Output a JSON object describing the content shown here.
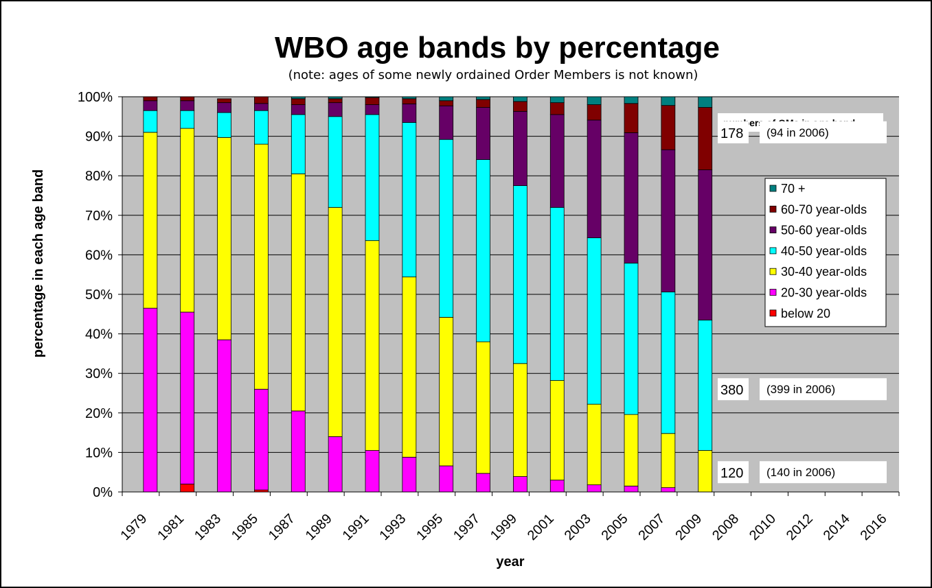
{
  "chart_data": {
    "type": "bar",
    "stacked": true,
    "title": "WBO age bands by percentage",
    "subtitle": "(note: ages of some newly ordained Order Members is not known)",
    "xlabel": "year",
    "ylabel": "percentage in each age band",
    "ylim": [
      0,
      100
    ],
    "ytick_labels": [
      "0%",
      "10%",
      "20%",
      "30%",
      "40%",
      "50%",
      "60%",
      "70%",
      "80%",
      "90%",
      "100%"
    ],
    "categories": [
      "1979",
      "1981",
      "1983",
      "1985",
      "1987",
      "1989",
      "1991",
      "1993",
      "1995",
      "1997",
      "1999",
      "2001",
      "2003",
      "2005",
      "2007",
      "2009",
      "2008",
      "2010",
      "2012",
      "2014",
      "2016"
    ],
    "grid": true,
    "legend_position": "right",
    "series": [
      {
        "name": "below 20",
        "color": "#FF0000",
        "values": [
          0,
          2,
          0,
          0.5,
          0,
          0,
          0,
          0,
          0,
          0,
          0,
          0,
          0,
          0,
          0,
          0,
          null,
          null,
          null,
          null,
          null
        ]
      },
      {
        "name": "20-30 year-olds",
        "color": "#FF00FF",
        "values": [
          46.5,
          43.5,
          38.5,
          25.5,
          20.5,
          14,
          10.5,
          8.8,
          6.6,
          4.7,
          3.9,
          3.0,
          1.8,
          1.5,
          1.1,
          0,
          null,
          null,
          null,
          null,
          null
        ]
      },
      {
        "name": "30-40 year-olds",
        "color": "#FFFF00",
        "values": [
          44.5,
          46.5,
          51.2,
          62,
          60,
          58,
          53.1,
          45.6,
          37.6,
          33.3,
          28.6,
          25.2,
          20.4,
          18.1,
          13.7,
          10.5,
          null,
          null,
          null,
          null,
          null
        ]
      },
      {
        "name": "40-50 year-olds",
        "color": "#00FFFF",
        "values": [
          5.5,
          4.5,
          6.3,
          8.5,
          15,
          23,
          31.9,
          39.1,
          45.0,
          46.1,
          45.0,
          43.8,
          42.1,
          38.3,
          35.8,
          33,
          null,
          null,
          null,
          null,
          null
        ]
      },
      {
        "name": "50-60 year-olds",
        "color": "#660066",
        "values": [
          2.5,
          2.5,
          2.5,
          1.8,
          2.5,
          3.5,
          2.5,
          4.7,
          8.5,
          13.2,
          18.8,
          23.5,
          29.8,
          33.0,
          36.0,
          38,
          null,
          null,
          null,
          null,
          null
        ]
      },
      {
        "name": "60-70 year-olds",
        "color": "#800000",
        "values": [
          1,
          1,
          1,
          1.7,
          1.5,
          1,
          1.8,
          1.3,
          1.3,
          2.0,
          2.5,
          3.0,
          3.9,
          7.4,
          11.2,
          15.8,
          null,
          null,
          null,
          null,
          null
        ]
      },
      {
        "name": "70 +",
        "color": "#008080",
        "values": [
          0,
          0,
          0,
          0,
          0.5,
          0.5,
          0.2,
          0.5,
          1.0,
          0.7,
          1.2,
          1.5,
          2.0,
          1.7,
          2.2,
          2.7,
          null,
          null,
          null,
          null,
          null
        ]
      }
    ],
    "legend_order": [
      "70 +",
      "60-70 year-olds",
      "50-60 year-olds",
      "40-50 year-olds",
      "30-40 year-olds",
      "20-30 year-olds",
      "below 20"
    ],
    "annotations": {
      "header": "numbers of OMs in age band",
      "boxes": [
        {
          "count": "178",
          "note": "(94 in 2006)",
          "y": 91
        },
        {
          "count": "380",
          "note": "(399 in 2006)",
          "y": 26
        },
        {
          "count": "120",
          "note": "(140 in 2006)",
          "y": 5
        }
      ]
    },
    "colors": {
      "plot_background": "#C0C0C0",
      "grid": "#000000"
    }
  }
}
